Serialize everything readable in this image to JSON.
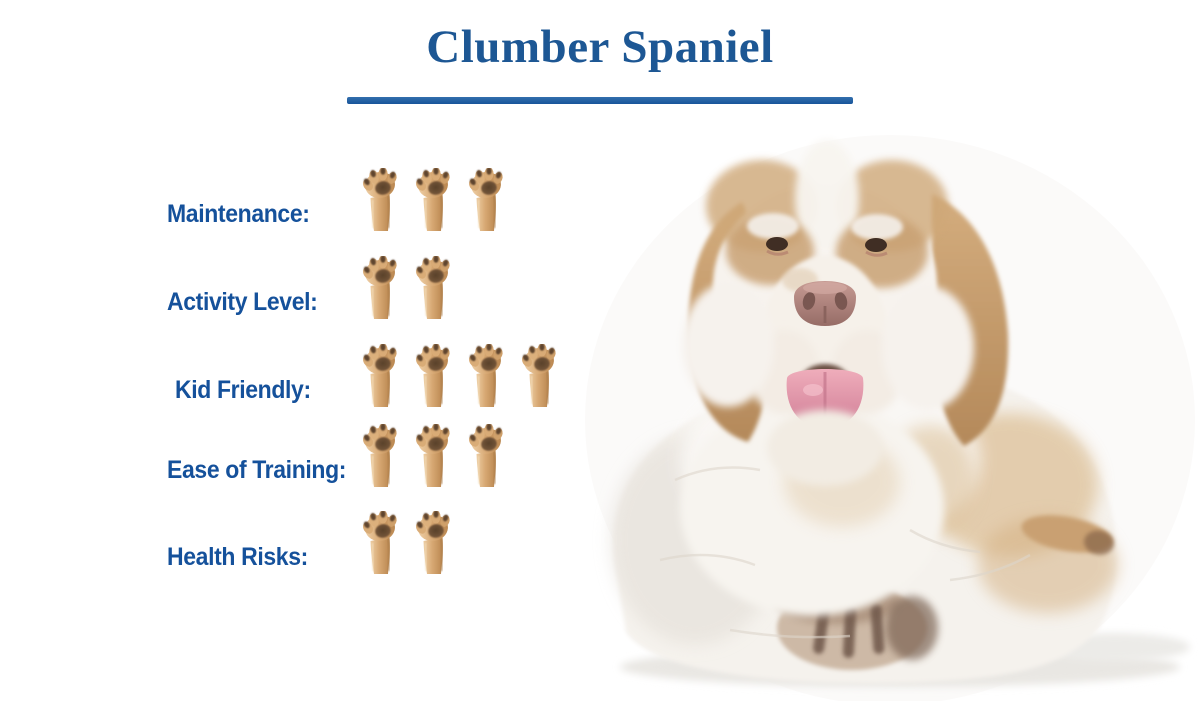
{
  "header": {
    "title": "Clumber Spaniel"
  },
  "chart_data": {
    "type": "pictograph-rating",
    "unit_icon": "dog-paw",
    "max_per_row": 5,
    "categories": [
      "Maintenance",
      "Activity Level",
      "Kid Friendly",
      "Ease of Training",
      "Health Risks"
    ],
    "values": [
      3,
      2,
      4,
      3,
      2
    ],
    "title": "Clumber Spaniel",
    "legend": "none",
    "layout": "labels left, paw icons right"
  },
  "ratings": [
    {
      "label": "Maintenance:",
      "value": 3
    },
    {
      "label": "Activity Level:",
      "value": 2
    },
    {
      "label": "Kid Friendly:",
      "value": 4
    },
    {
      "label": "Ease of Training:",
      "value": 3
    },
    {
      "label": "Health Risks:",
      "value": 2
    }
  ],
  "icons": {
    "paw": "dog-paw-icon"
  },
  "illustration": {
    "description": "Clumber Spaniel dog lying down facing viewer, white coat with lemon-tan ears and eye patches, pink tongue out",
    "fur_white": "#f6f3ee",
    "fur_tan": "#c9a173",
    "nose": "#a87d76",
    "tongue": "#e0a0b0"
  },
  "colors": {
    "accent_blue": "#1d5794",
    "label_blue": "#15519b",
    "underline_blue": "#17549a",
    "paw_tan": "#d7a873",
    "paw_pad": "#5f452f",
    "background": "#ffffff"
  }
}
